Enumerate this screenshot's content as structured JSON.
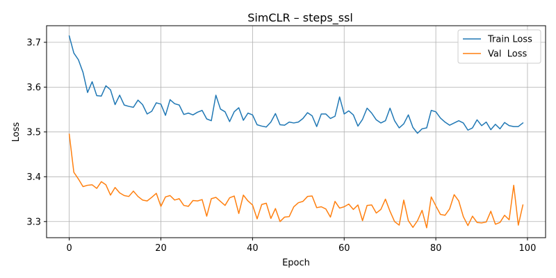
{
  "chart_data": {
    "type": "line",
    "title": "SimCLR – steps_ssl",
    "xlabel": "Epoch",
    "ylabel": "Loss",
    "xlim": [
      -4.95,
      103.95
    ],
    "ylim": [
      3.264,
      3.737
    ],
    "x_ticks": [
      0,
      20,
      40,
      60,
      80,
      100
    ],
    "x_tick_labels": [
      "0",
      "20",
      "40",
      "60",
      "80",
      "100"
    ],
    "y_ticks": [
      3.3,
      3.4,
      3.5,
      3.6,
      3.7
    ],
    "y_tick_labels": [
      "3.3",
      "3.4",
      "3.5",
      "3.6",
      "3.7"
    ],
    "grid": true,
    "legend_position": "top-right",
    "x": [
      0,
      1,
      2,
      3,
      4,
      5,
      6,
      7,
      8,
      9,
      10,
      11,
      12,
      13,
      14,
      15,
      16,
      17,
      18,
      19,
      20,
      21,
      22,
      23,
      24,
      25,
      26,
      27,
      28,
      29,
      30,
      31,
      32,
      33,
      34,
      35,
      36,
      37,
      38,
      39,
      40,
      41,
      42,
      43,
      44,
      45,
      46,
      47,
      48,
      49,
      50,
      51,
      52,
      53,
      54,
      55,
      56,
      57,
      58,
      59,
      60,
      61,
      62,
      63,
      64,
      65,
      66,
      67,
      68,
      69,
      70,
      71,
      72,
      73,
      74,
      75,
      76,
      77,
      78,
      79,
      80,
      81,
      82,
      83,
      84,
      85,
      86,
      87,
      88,
      89,
      90,
      91,
      92,
      93,
      94,
      95,
      96,
      97,
      98,
      99
    ],
    "series": [
      {
        "name": "Train Loss",
        "color": "#1f77b4",
        "values": [
          3.714,
          3.676,
          3.661,
          3.633,
          3.588,
          3.612,
          3.581,
          3.58,
          3.603,
          3.594,
          3.561,
          3.582,
          3.56,
          3.557,
          3.555,
          3.571,
          3.561,
          3.54,
          3.546,
          3.565,
          3.562,
          3.537,
          3.572,
          3.563,
          3.56,
          3.539,
          3.542,
          3.538,
          3.544,
          3.548,
          3.529,
          3.525,
          3.582,
          3.551,
          3.545,
          3.523,
          3.545,
          3.554,
          3.526,
          3.542,
          3.538,
          3.516,
          3.513,
          3.511,
          3.522,
          3.541,
          3.516,
          3.515,
          3.522,
          3.52,
          3.522,
          3.53,
          3.543,
          3.536,
          3.512,
          3.54,
          3.54,
          3.53,
          3.535,
          3.578,
          3.54,
          3.547,
          3.538,
          3.513,
          3.528,
          3.553,
          3.542,
          3.527,
          3.52,
          3.525,
          3.553,
          3.525,
          3.509,
          3.518,
          3.538,
          3.51,
          3.497,
          3.507,
          3.509,
          3.548,
          3.545,
          3.531,
          3.522,
          3.515,
          3.52,
          3.525,
          3.52,
          3.504,
          3.509,
          3.527,
          3.514,
          3.522,
          3.505,
          3.517,
          3.507,
          3.521,
          3.514,
          3.512,
          3.512,
          3.52
        ]
      },
      {
        "name": "Val  Loss",
        "color": "#ff7f0e",
        "values": [
          3.495,
          3.41,
          3.395,
          3.378,
          3.381,
          3.382,
          3.374,
          3.389,
          3.382,
          3.359,
          3.376,
          3.364,
          3.358,
          3.356,
          3.368,
          3.356,
          3.348,
          3.346,
          3.354,
          3.363,
          3.334,
          3.355,
          3.358,
          3.348,
          3.351,
          3.336,
          3.334,
          3.347,
          3.346,
          3.349,
          3.312,
          3.351,
          3.354,
          3.345,
          3.336,
          3.353,
          3.357,
          3.318,
          3.359,
          3.346,
          3.337,
          3.306,
          3.338,
          3.341,
          3.307,
          3.329,
          3.3,
          3.31,
          3.311,
          3.333,
          3.342,
          3.345,
          3.356,
          3.357,
          3.331,
          3.333,
          3.328,
          3.31,
          3.345,
          3.33,
          3.333,
          3.339,
          3.327,
          3.337,
          3.302,
          3.336,
          3.337,
          3.319,
          3.327,
          3.35,
          3.323,
          3.3,
          3.292,
          3.348,
          3.302,
          3.287,
          3.302,
          3.325,
          3.286,
          3.355,
          3.335,
          3.316,
          3.314,
          3.328,
          3.36,
          3.346,
          3.311,
          3.291,
          3.312,
          3.298,
          3.297,
          3.299,
          3.323,
          3.294,
          3.298,
          3.314,
          3.304,
          3.381,
          3.292,
          3.337
        ]
      }
    ]
  }
}
